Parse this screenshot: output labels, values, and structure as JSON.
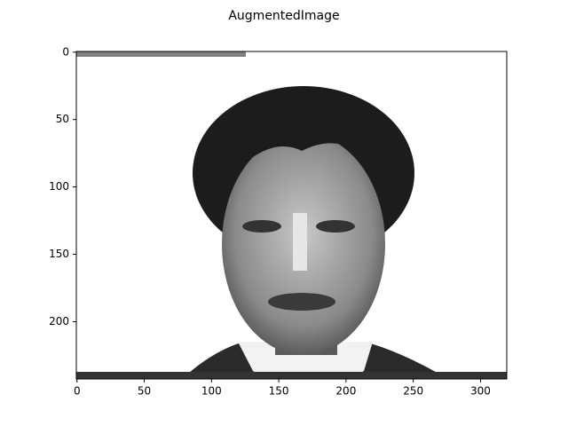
{
  "chart_data": {
    "type": "image",
    "title": "AugmentedImage",
    "xlim": [
      -0.5,
      319.5
    ],
    "ylim": [
      242.5,
      -0.5
    ],
    "xticks": [
      0,
      50,
      100,
      150,
      200,
      250,
      300
    ],
    "yticks": [
      0,
      50,
      100,
      150,
      200
    ]
  }
}
